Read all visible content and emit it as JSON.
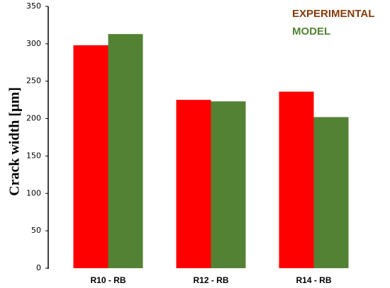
{
  "chart_data": {
    "type": "bar",
    "y_label": "Crack width [µm]",
    "categories": [
      "R10 - RB",
      "R12 - RB",
      "R14 - RB"
    ],
    "series": [
      {
        "name": "EXPERIMENTAL",
        "color": "#ff0000",
        "label_color": "#843c0c",
        "values": [
          298,
          225,
          236
        ]
      },
      {
        "name": "MODEL",
        "color": "#548235",
        "label_color": "#548235",
        "values": [
          313,
          223,
          202
        ]
      }
    ],
    "ylim": [
      0,
      350
    ],
    "yticks": [
      0,
      50,
      100,
      150,
      200,
      250,
      300,
      350
    ],
    "legend": "top-right",
    "grid": false
  }
}
